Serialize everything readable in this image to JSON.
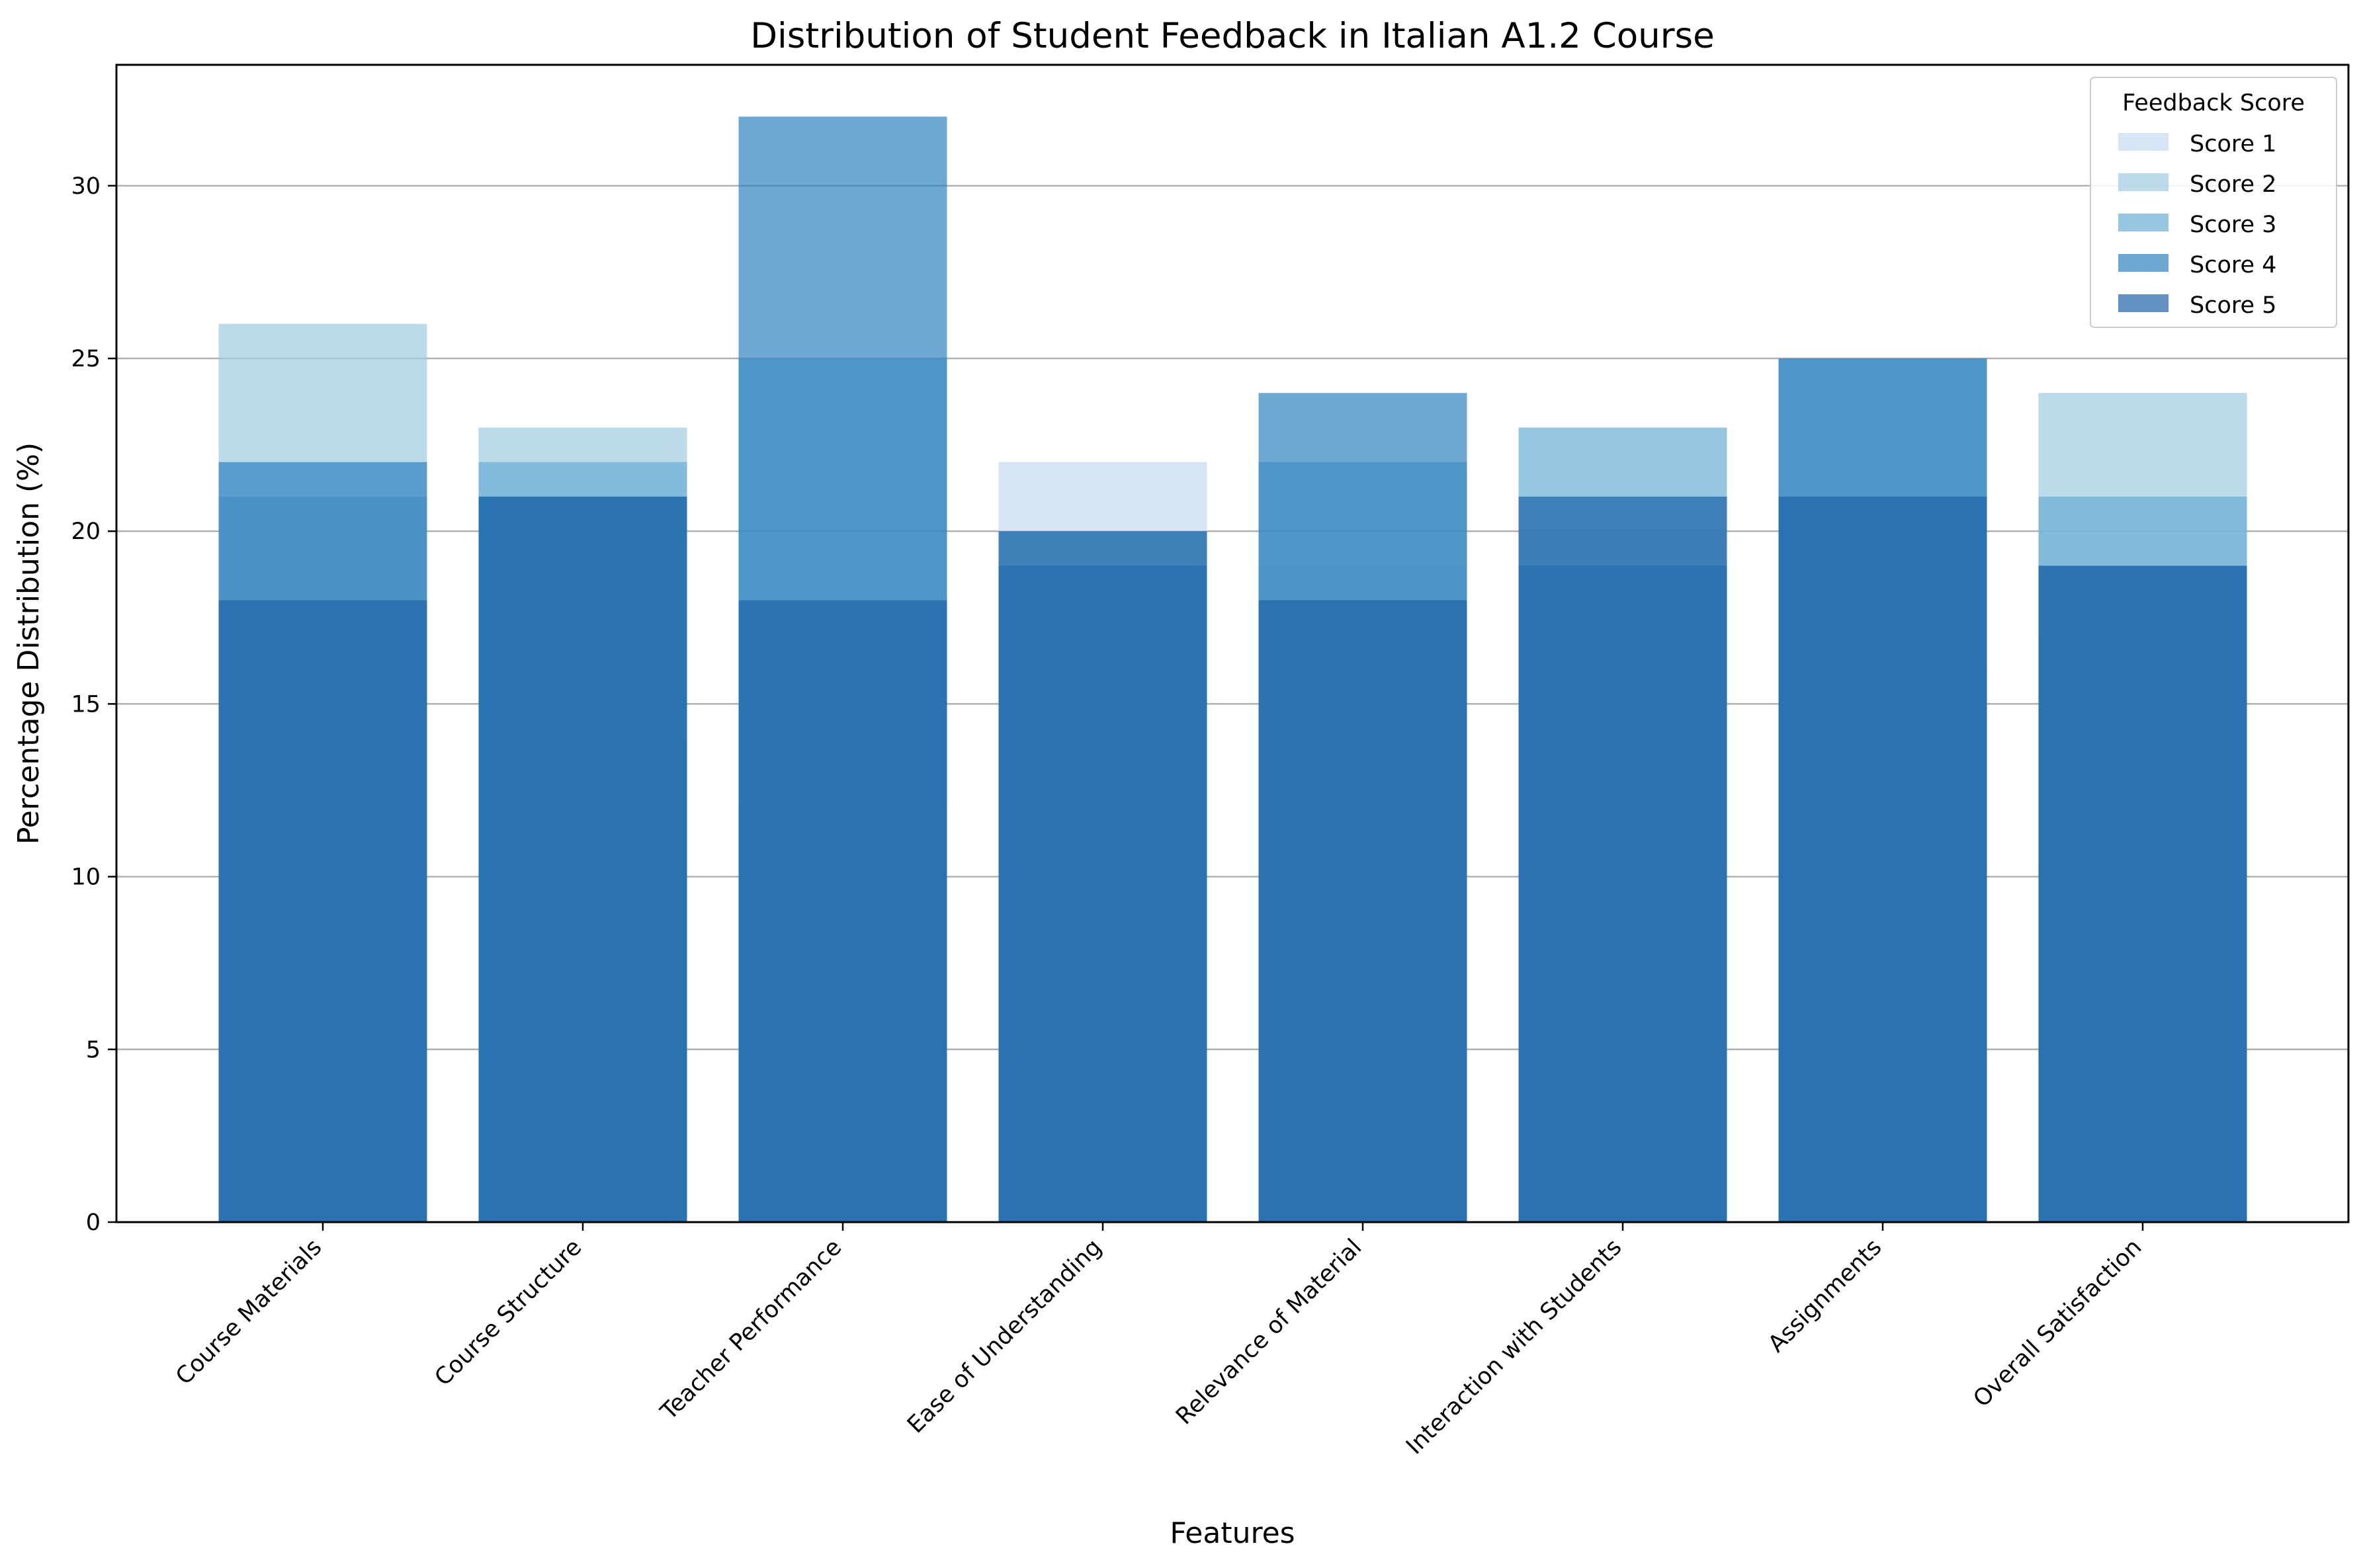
{
  "chart_data": {
    "type": "bar",
    "title": "Distribution of Student Feedback in Italian A1.2 Course",
    "xlabel": "Features",
    "ylabel": "Percentage Distribution (%)",
    "ylim": [
      0,
      33.5
    ],
    "yticks": [
      0,
      5,
      10,
      15,
      20,
      25,
      30
    ],
    "grid": "y",
    "categories": [
      "Course Materials",
      "Course Structure",
      "Teacher Performance",
      "Ease of Understanding",
      "Relevance of Material",
      "Interaction with Students",
      "Assignments",
      "Overall Satisfaction"
    ],
    "series": [
      {
        "name": "Score 1",
        "color": "#c6dbef",
        "values": [
          15,
          14,
          12,
          22,
          19,
          20,
          16,
          17
        ]
      },
      {
        "name": "Score 2",
        "color": "#9ecae1",
        "values": [
          26,
          23,
          18,
          19,
          18,
          21,
          21,
          24
        ]
      },
      {
        "name": "Score 3",
        "color": "#6baed6",
        "values": [
          21,
          22,
          25,
          20,
          22,
          23,
          25,
          21
        ]
      },
      {
        "name": "Score 4",
        "color": "#3182bd",
        "values": [
          22,
          21,
          32,
          19,
          24,
          19,
          25,
          19
        ]
      },
      {
        "name": "Score 5",
        "color": "#1f65a8",
        "values": [
          18,
          21,
          18,
          20,
          18,
          21,
          21,
          19
        ]
      }
    ],
    "overlay": "bars drawn overlapping from the same baseline with partial transparency",
    "legend": {
      "title": "Feedback Score",
      "placement": "top-right"
    }
  }
}
